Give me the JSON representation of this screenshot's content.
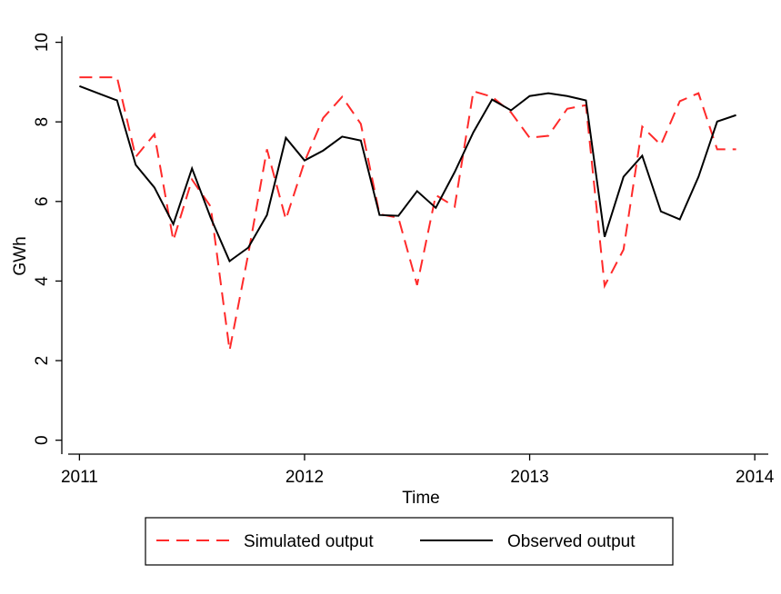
{
  "chart_data": {
    "type": "line",
    "x_label": "Time",
    "y_label": "GWh",
    "x": [
      2011,
      2011.083,
      2011.167,
      2011.25,
      2011.333,
      2011.417,
      2011.5,
      2011.583,
      2011.667,
      2011.75,
      2011.833,
      2011.917,
      2012,
      2012.083,
      2012.167,
      2012.25,
      2012.333,
      2012.417,
      2012.5,
      2012.583,
      2012.667,
      2012.75,
      2012.833,
      2012.917,
      2013,
      2013.083,
      2013.167,
      2013.25,
      2013.333,
      2013.417,
      2013.5,
      2013.583,
      2013.667,
      2013.75,
      2013.833,
      2013.917
    ],
    "series": [
      {
        "name": "Simulated output",
        "color": "#ff2a2a",
        "dashed": true,
        "values": [
          9.12,
          9.12,
          9.12,
          7.12,
          7.69,
          5.02,
          6.55,
          5.87,
          2.26,
          4.68,
          7.31,
          5.55,
          7.0,
          8.1,
          8.63,
          7.95,
          5.68,
          5.59,
          3.9,
          6.16,
          5.87,
          8.77,
          8.63,
          8.24,
          7.6,
          7.65,
          8.33,
          8.42,
          3.88,
          4.79,
          7.88,
          7.42,
          8.52,
          8.72,
          7.31,
          7.31
        ]
      },
      {
        "name": "Observed output",
        "color": "#000000",
        "dashed": false,
        "values": [
          8.9,
          8.72,
          8.54,
          6.92,
          6.35,
          5.43,
          6.83,
          5.59,
          4.5,
          4.84,
          5.66,
          7.6,
          7.03,
          7.28,
          7.63,
          7.53,
          5.66,
          5.64,
          6.26,
          5.84,
          6.74,
          7.74,
          8.56,
          8.29,
          8.65,
          8.72,
          8.65,
          8.54,
          5.11,
          6.62,
          7.15,
          5.75,
          5.55,
          6.62,
          8.01,
          8.17
        ]
      }
    ],
    "xlim": [
      2010.95,
      2014.06
    ],
    "xticks": [
      2011,
      2012,
      2013,
      2014
    ],
    "ylim": [
      -0.35,
      10.15
    ],
    "yticks": [
      0,
      2,
      4,
      6,
      8,
      10
    ],
    "grid": false,
    "legend": "bottom"
  }
}
